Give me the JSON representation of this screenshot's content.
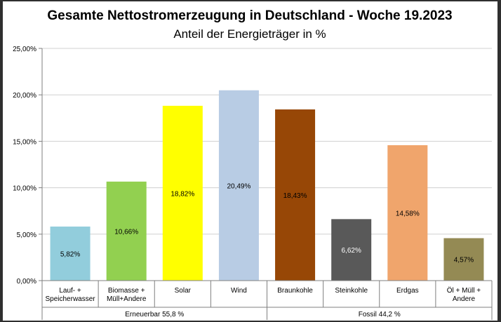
{
  "chart_data": {
    "type": "bar",
    "title": "Gesamte Nettostromerzeugung in Deutschland - Woche 19.2023",
    "subtitle": "Anteil der Energieträger in %",
    "xlabel": "",
    "ylabel": "",
    "ylim": [
      0,
      25
    ],
    "yticks": [
      0,
      5,
      10,
      15,
      20,
      25
    ],
    "ytick_labels": [
      "0,00%",
      "5,00%",
      "10,00%",
      "15,00%",
      "20,00%",
      "25,00%"
    ],
    "grid": true,
    "categories": [
      [
        "Lauf- +",
        "Speicherwasser"
      ],
      [
        "Biomasse +",
        "Müll+Andere"
      ],
      [
        "Solar"
      ],
      [
        "Wind"
      ],
      [
        "Braunkohle"
      ],
      [
        "Steinkohle"
      ],
      [
        "Erdgas"
      ],
      [
        "Öl + Müll +",
        "Andere"
      ]
    ],
    "values": [
      5.82,
      10.66,
      18.82,
      20.49,
      18.43,
      6.62,
      14.58,
      4.57
    ],
    "data_labels": [
      "5,82%",
      "10,66%",
      "18,82%",
      "20,49%",
      "18,43%",
      "6,62%",
      "14,58%",
      "4,57%"
    ],
    "colors": [
      "#92CDDC",
      "#92D050",
      "#FFFF00",
      "#B8CCE4",
      "#974706",
      "#595959",
      "#F0A56C",
      "#948A54"
    ],
    "label_colors": [
      "#000000",
      "#000000",
      "#000000",
      "#000000",
      "#000000",
      "#ffffff",
      "#000000",
      "#000000"
    ],
    "groups": [
      {
        "label": "Erneuerbar 55,8 %",
        "start": 0,
        "end": 3
      },
      {
        "label": "Fossil 44,2 %",
        "start": 4,
        "end": 7
      }
    ]
  }
}
